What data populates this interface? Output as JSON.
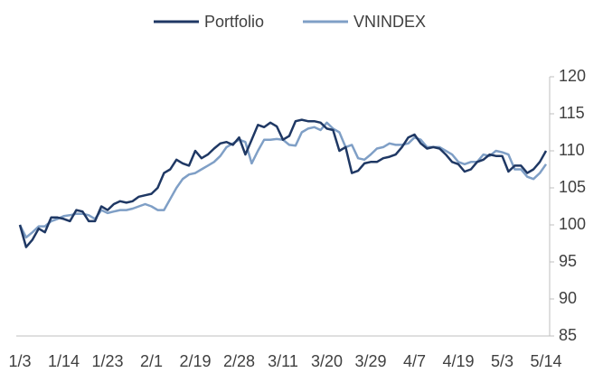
{
  "chart_data": {
    "type": "line",
    "categories": [
      "1/3",
      null,
      null,
      null,
      null,
      null,
      null,
      "1/14",
      null,
      null,
      null,
      null,
      null,
      null,
      "1/23",
      null,
      null,
      null,
      null,
      null,
      null,
      "2/1",
      null,
      null,
      null,
      null,
      null,
      null,
      "2/19",
      null,
      null,
      null,
      null,
      null,
      null,
      "2/28",
      null,
      null,
      null,
      null,
      null,
      null,
      "3/11",
      null,
      null,
      null,
      null,
      null,
      null,
      "3/20",
      null,
      null,
      null,
      null,
      null,
      null,
      "3/29",
      null,
      null,
      null,
      null,
      null,
      null,
      "4/7",
      null,
      null,
      null,
      null,
      null,
      null,
      "4/19",
      null,
      null,
      null,
      null,
      null,
      null,
      "5/3",
      null,
      null,
      null,
      null,
      null,
      null,
      "5/14"
    ],
    "series": [
      {
        "name": "Portfolio",
        "color": "#1f3864",
        "values": [
          100,
          97,
          98,
          99.5,
          99,
          101,
          101,
          100.8,
          100.5,
          102,
          101.8,
          100.5,
          100.5,
          102.5,
          102,
          102.8,
          103.2,
          103,
          103.2,
          103.8,
          104,
          104.2,
          105,
          107,
          107.5,
          108.8,
          108.3,
          108,
          110,
          109,
          109.5,
          110.3,
          111,
          111.2,
          110.8,
          111.8,
          109.5,
          111.5,
          113.5,
          113.2,
          113.8,
          113.3,
          111.5,
          112,
          114,
          114.2,
          114,
          114,
          113.8,
          113,
          112.8,
          110,
          110.5,
          107,
          107.3,
          108.3,
          108.5,
          108.5,
          109,
          109.2,
          109.5,
          110.5,
          111.8,
          112.2,
          111,
          110.3,
          110.5,
          110.3,
          109.5,
          108.5,
          108.2,
          107.2,
          107.5,
          108.5,
          108.8,
          109.5,
          109.3,
          109.3,
          107.2,
          108,
          108,
          107,
          107.5,
          108.5,
          110
        ]
      },
      {
        "name": "VNINDEX",
        "color": "#7f9fc6",
        "values": [
          100,
          98.3,
          99,
          99.8,
          99.8,
          100.5,
          100.8,
          101.2,
          101.3,
          101.5,
          101.5,
          101.3,
          100.8,
          102,
          101.6,
          101.8,
          102,
          102,
          102.2,
          102.5,
          102.8,
          102.5,
          102,
          102,
          103.5,
          105,
          106.2,
          106.8,
          107,
          107.5,
          108,
          108.5,
          109.3,
          110.5,
          111,
          111.5,
          111.2,
          108.3,
          110,
          111.5,
          111.5,
          111.6,
          111.5,
          110.8,
          110.7,
          112.5,
          113,
          113.2,
          112.8,
          113.8,
          113,
          112.5,
          110.5,
          110.8,
          109,
          108.8,
          109.5,
          110.3,
          110.5,
          111,
          110.8,
          110.8,
          111,
          111.8,
          111.5,
          110.5,
          110.5,
          110.5,
          110,
          109.5,
          108.5,
          108.2,
          108.5,
          108.5,
          109.5,
          109.3,
          110,
          109.8,
          109.5,
          107.5,
          107.5,
          106.5,
          106.2,
          107,
          108.2
        ]
      }
    ],
    "ylim": [
      85,
      120
    ],
    "yticks": [
      85,
      90,
      95,
      100,
      105,
      110,
      115,
      120
    ],
    "legend": "top"
  }
}
